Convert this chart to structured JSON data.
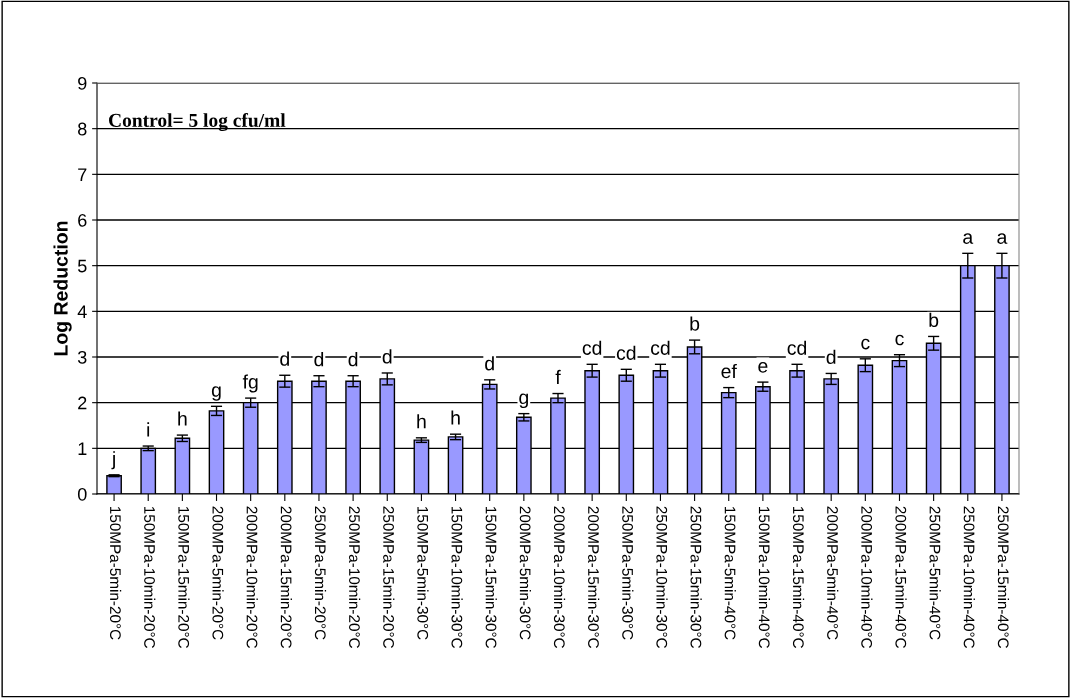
{
  "chart_data": {
    "type": "bar",
    "ylabel": "Log Reduction",
    "categories": [
      "150MPa-5min-20°C",
      "150MPa-10min-20°C",
      "150MPa-15min-20°C",
      "200MPa-5min-20°C",
      "200MPa-10min-20°C",
      "200MPa-15min-20°C",
      "250MPa-5min-20°C",
      "250MPa-10min-20°C",
      "250MPa-15min-20°C",
      "150MPa-5min-30°C",
      "150MPa-10min-30°C",
      "150MPa-15min-30°C",
      "200MPa-5min-30°C",
      "200MPa-10min-30°C",
      "200MPa-15min-30°C",
      "250MPa-5min-30°C",
      "250MPa-10min-30°C",
      "250MPa-15min-30°C",
      "150MPa-5min-40°C",
      "150MPa-10min-40°C",
      "150MPa-15min-40°C",
      "200MPa-5min-40°C",
      "200MPa-10min-40°C",
      "200MPa-15min-40°C",
      "250MPa-5min-40°C",
      "250MPa-10min-40°C",
      "250MPa-15min-40°C"
    ],
    "values": [
      0.4,
      1.0,
      1.22,
      1.82,
      2.0,
      2.47,
      2.47,
      2.47,
      2.52,
      1.18,
      1.25,
      2.4,
      1.68,
      2.1,
      2.7,
      2.6,
      2.7,
      3.22,
      2.22,
      2.35,
      2.7,
      2.52,
      2.82,
      2.92,
      3.3,
      5.0,
      5.0
    ],
    "errors": [
      0.02,
      0.05,
      0.07,
      0.1,
      0.1,
      0.13,
      0.12,
      0.12,
      0.13,
      0.05,
      0.06,
      0.1,
      0.08,
      0.1,
      0.14,
      0.13,
      0.14,
      0.15,
      0.11,
      0.1,
      0.14,
      0.12,
      0.14,
      0.13,
      0.15,
      0.27,
      0.27
    ],
    "color": "#9999ff",
    "ylim": [
      0,
      9
    ],
    "yticks": [
      0,
      1,
      2,
      3,
      4,
      5,
      6,
      7,
      8,
      9
    ],
    "grid": "y",
    "annotations": [
      "Control= 5 log cfu/ml",
      {
        "text": "j",
        "x": "150MPa-5min-20°C",
        "y": 0.42
      },
      {
        "text": "i",
        "x": "150MPa-10min-20°C",
        "y": 1.05
      },
      {
        "text": "h",
        "x": "150MPa-15min-20°C",
        "y": 1.29
      },
      {
        "text": "g",
        "x": "200MPa-5min-20°C",
        "y": 1.92
      },
      {
        "text": "fg",
        "x": "200MPa-10min-20°C",
        "y": 2.1
      },
      {
        "text": "d",
        "x": "200MPa-15min-20°C",
        "y": 2.6
      },
      {
        "text": "d",
        "x": "250MPa-5min-20°C",
        "y": 2.59
      },
      {
        "text": "d",
        "x": "250MPa-10min-20°C",
        "y": 2.59
      },
      {
        "text": "d",
        "x": "250MPa-15min-20°C",
        "y": 2.65
      },
      {
        "text": "h",
        "x": "150MPa-5min-30°C",
        "y": 1.23
      },
      {
        "text": "h",
        "x": "150MPa-10min-30°C",
        "y": 1.31
      },
      {
        "text": "d",
        "x": "150MPa-15min-30°C",
        "y": 2.5
      },
      {
        "text": "g",
        "x": "200MPa-5min-30°C",
        "y": 1.76
      },
      {
        "text": "f",
        "x": "200MPa-10min-30°C",
        "y": 2.2
      },
      {
        "text": "cd",
        "x": "200MPa-15min-30°C",
        "y": 2.84
      },
      {
        "text": "cd",
        "x": "250MPa-5min-30°C",
        "y": 2.73
      },
      {
        "text": "cd",
        "x": "250MPa-10min-30°C",
        "y": 2.84
      },
      {
        "text": "b",
        "x": "250MPa-15min-30°C",
        "y": 3.37
      },
      {
        "text": "ef",
        "x": "150MPa-5min-40°C",
        "y": 2.33
      },
      {
        "text": "e",
        "x": "150MPa-10min-40°C",
        "y": 2.45
      },
      {
        "text": "cd",
        "x": "150MPa-15min-40°C",
        "y": 2.84
      },
      {
        "text": "d",
        "x": "200MPa-5min-40°C",
        "y": 2.64
      },
      {
        "text": "c",
        "x": "200MPa-10min-40°C",
        "y": 2.96
      },
      {
        "text": "c",
        "x": "200MPa-15min-40°C",
        "y": 3.05
      },
      {
        "text": "b",
        "x": "250MPa-5min-40°C",
        "y": 3.45
      },
      {
        "text": "a",
        "x": "250MPa-10min-40°C",
        "y": 5.27
      },
      {
        "text": "a",
        "x": "250MPa-15min-40°C",
        "y": 5.27
      }
    ]
  }
}
